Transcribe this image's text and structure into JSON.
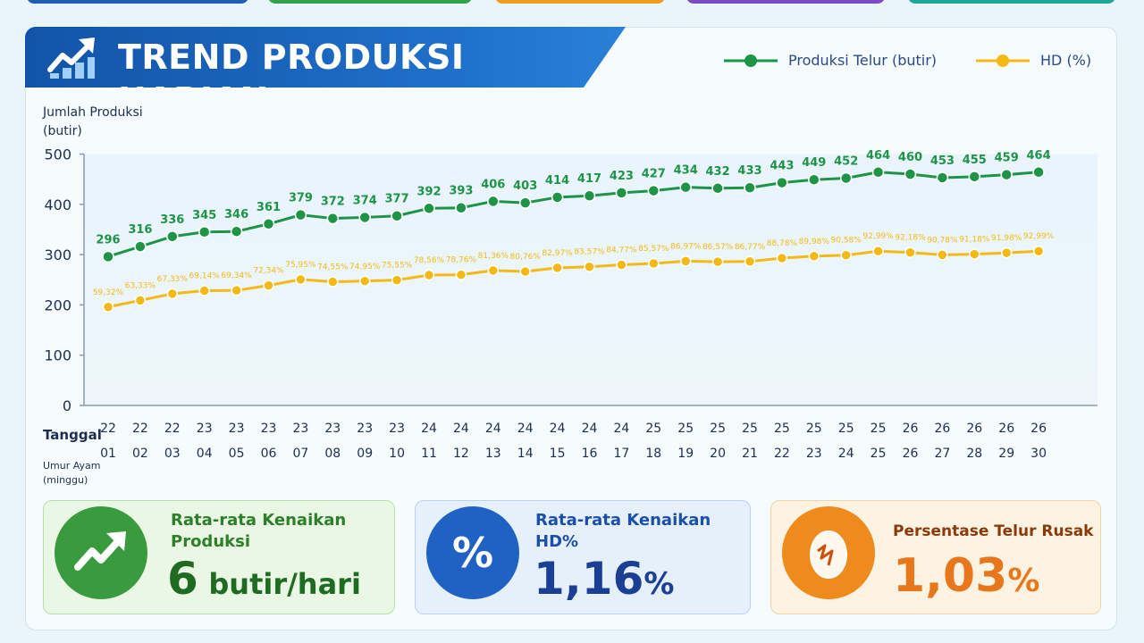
{
  "header": {
    "title": "TREND PRODUKSI HARIAN",
    "legend": [
      {
        "label": "Produksi Telur (butir)",
        "color": "#1e9447"
      },
      {
        "label": "HD (%)",
        "color": "#f5b915"
      }
    ]
  },
  "axis": {
    "y_label_line1": "Jumlah Produksi",
    "y_label_line2": "(butir)",
    "x_row1_label": "Tanggal",
    "x_row2_label_line1": "Umur Ayam",
    "x_row2_label_line2": "(minggu)"
  },
  "chart_data": {
    "type": "line",
    "ylim": [
      0,
      500
    ],
    "yticks": [
      0,
      100,
      200,
      300,
      400,
      500
    ],
    "grid": false,
    "legend_position": "top-right",
    "x_row1": [
      "22",
      "22",
      "22",
      "23",
      "23",
      "23",
      "23",
      "23",
      "23",
      "23",
      "24",
      "24",
      "24",
      "24",
      "24",
      "24",
      "24",
      "25",
      "25",
      "25",
      "25",
      "25",
      "25",
      "25",
      "25",
      "26",
      "26",
      "26",
      "26",
      "26"
    ],
    "x_row2": [
      "01",
      "02",
      "03",
      "04",
      "05",
      "06",
      "07",
      "08",
      "09",
      "10",
      "11",
      "12",
      "13",
      "14",
      "15",
      "16",
      "17",
      "18",
      "19",
      "20",
      "21",
      "22",
      "23",
      "24",
      "25",
      "26",
      "27",
      "28",
      "29",
      "30"
    ],
    "series": [
      {
        "name": "Produksi Telur (butir)",
        "color": "#1e9447",
        "values": [
          296,
          316,
          336,
          345,
          346,
          361,
          379,
          372,
          374,
          377,
          392,
          393,
          406,
          403,
          414,
          417,
          423,
          427,
          434,
          432,
          433,
          443,
          449,
          452,
          464,
          460,
          453,
          455,
          459,
          464
        ],
        "labels": [
          "296",
          "316",
          "336",
          "345",
          "346",
          "361",
          "379",
          "372",
          "374",
          "377",
          "392",
          "393",
          "406",
          "403",
          "414",
          "417",
          "423",
          "427",
          "434",
          "432",
          "433",
          "443",
          "449",
          "452",
          "464",
          "460",
          "453",
          "455",
          "459",
          "464"
        ]
      },
      {
        "name": "HD (%)",
        "color": "#f5b915",
        "values": [
          59.32,
          63.33,
          67.33,
          69.14,
          69.34,
          72.34,
          75.95,
          74.55,
          74.95,
          75.55,
          78.56,
          78.76,
          81.36,
          80.76,
          82.97,
          83.57,
          84.77,
          85.57,
          86.97,
          86.57,
          86.77,
          88.78,
          89.98,
          90.58,
          92.99,
          92.18,
          90.78,
          91.18,
          91.98,
          92.99
        ],
        "labels": [
          "59,32%",
          "63,33%",
          "67,33%",
          "69,14%",
          "69,34%",
          "72,34%",
          "75,95%",
          "74,55%",
          "74,95%",
          "75,55%",
          "78,56%",
          "78,76%",
          "81,36%",
          "80,76%",
          "82,97%",
          "83,57%",
          "84,77%",
          "85,57%",
          "86,97%",
          "86,57%",
          "86,77%",
          "88,78%",
          "89,98%",
          "90,58%",
          "92,99%",
          "92,18%",
          "90,78%",
          "91,18%",
          "91,98%",
          "92,99%"
        ]
      }
    ]
  },
  "cards": [
    {
      "label_line1": "Rata-rata Kenaikan",
      "label_line2": "Produksi",
      "value_number": "6",
      "value_unit": "butir/hari",
      "color": "#3a9a3e",
      "icon": "trend-up-icon"
    },
    {
      "label_line1": "Rata-rata Kenaikan",
      "label_line2": "HD%",
      "value_number": "1,16",
      "value_unit": "%",
      "color": "#1c4fa8",
      "icon": "percent-icon",
      "icon_text": "%"
    },
    {
      "label_line1": "Persentase Telur Rusak",
      "value_number": "1,03",
      "value_unit": "%",
      "color": "#e87c14",
      "icon": "cracked-egg-icon"
    }
  ],
  "top_tabs": [
    {
      "color": "#1e5fb3"
    },
    {
      "color": "#2fa24a"
    },
    {
      "color": "#f29c1f"
    },
    {
      "color": "#7b4cc6"
    },
    {
      "color": "#1fa89a"
    }
  ]
}
